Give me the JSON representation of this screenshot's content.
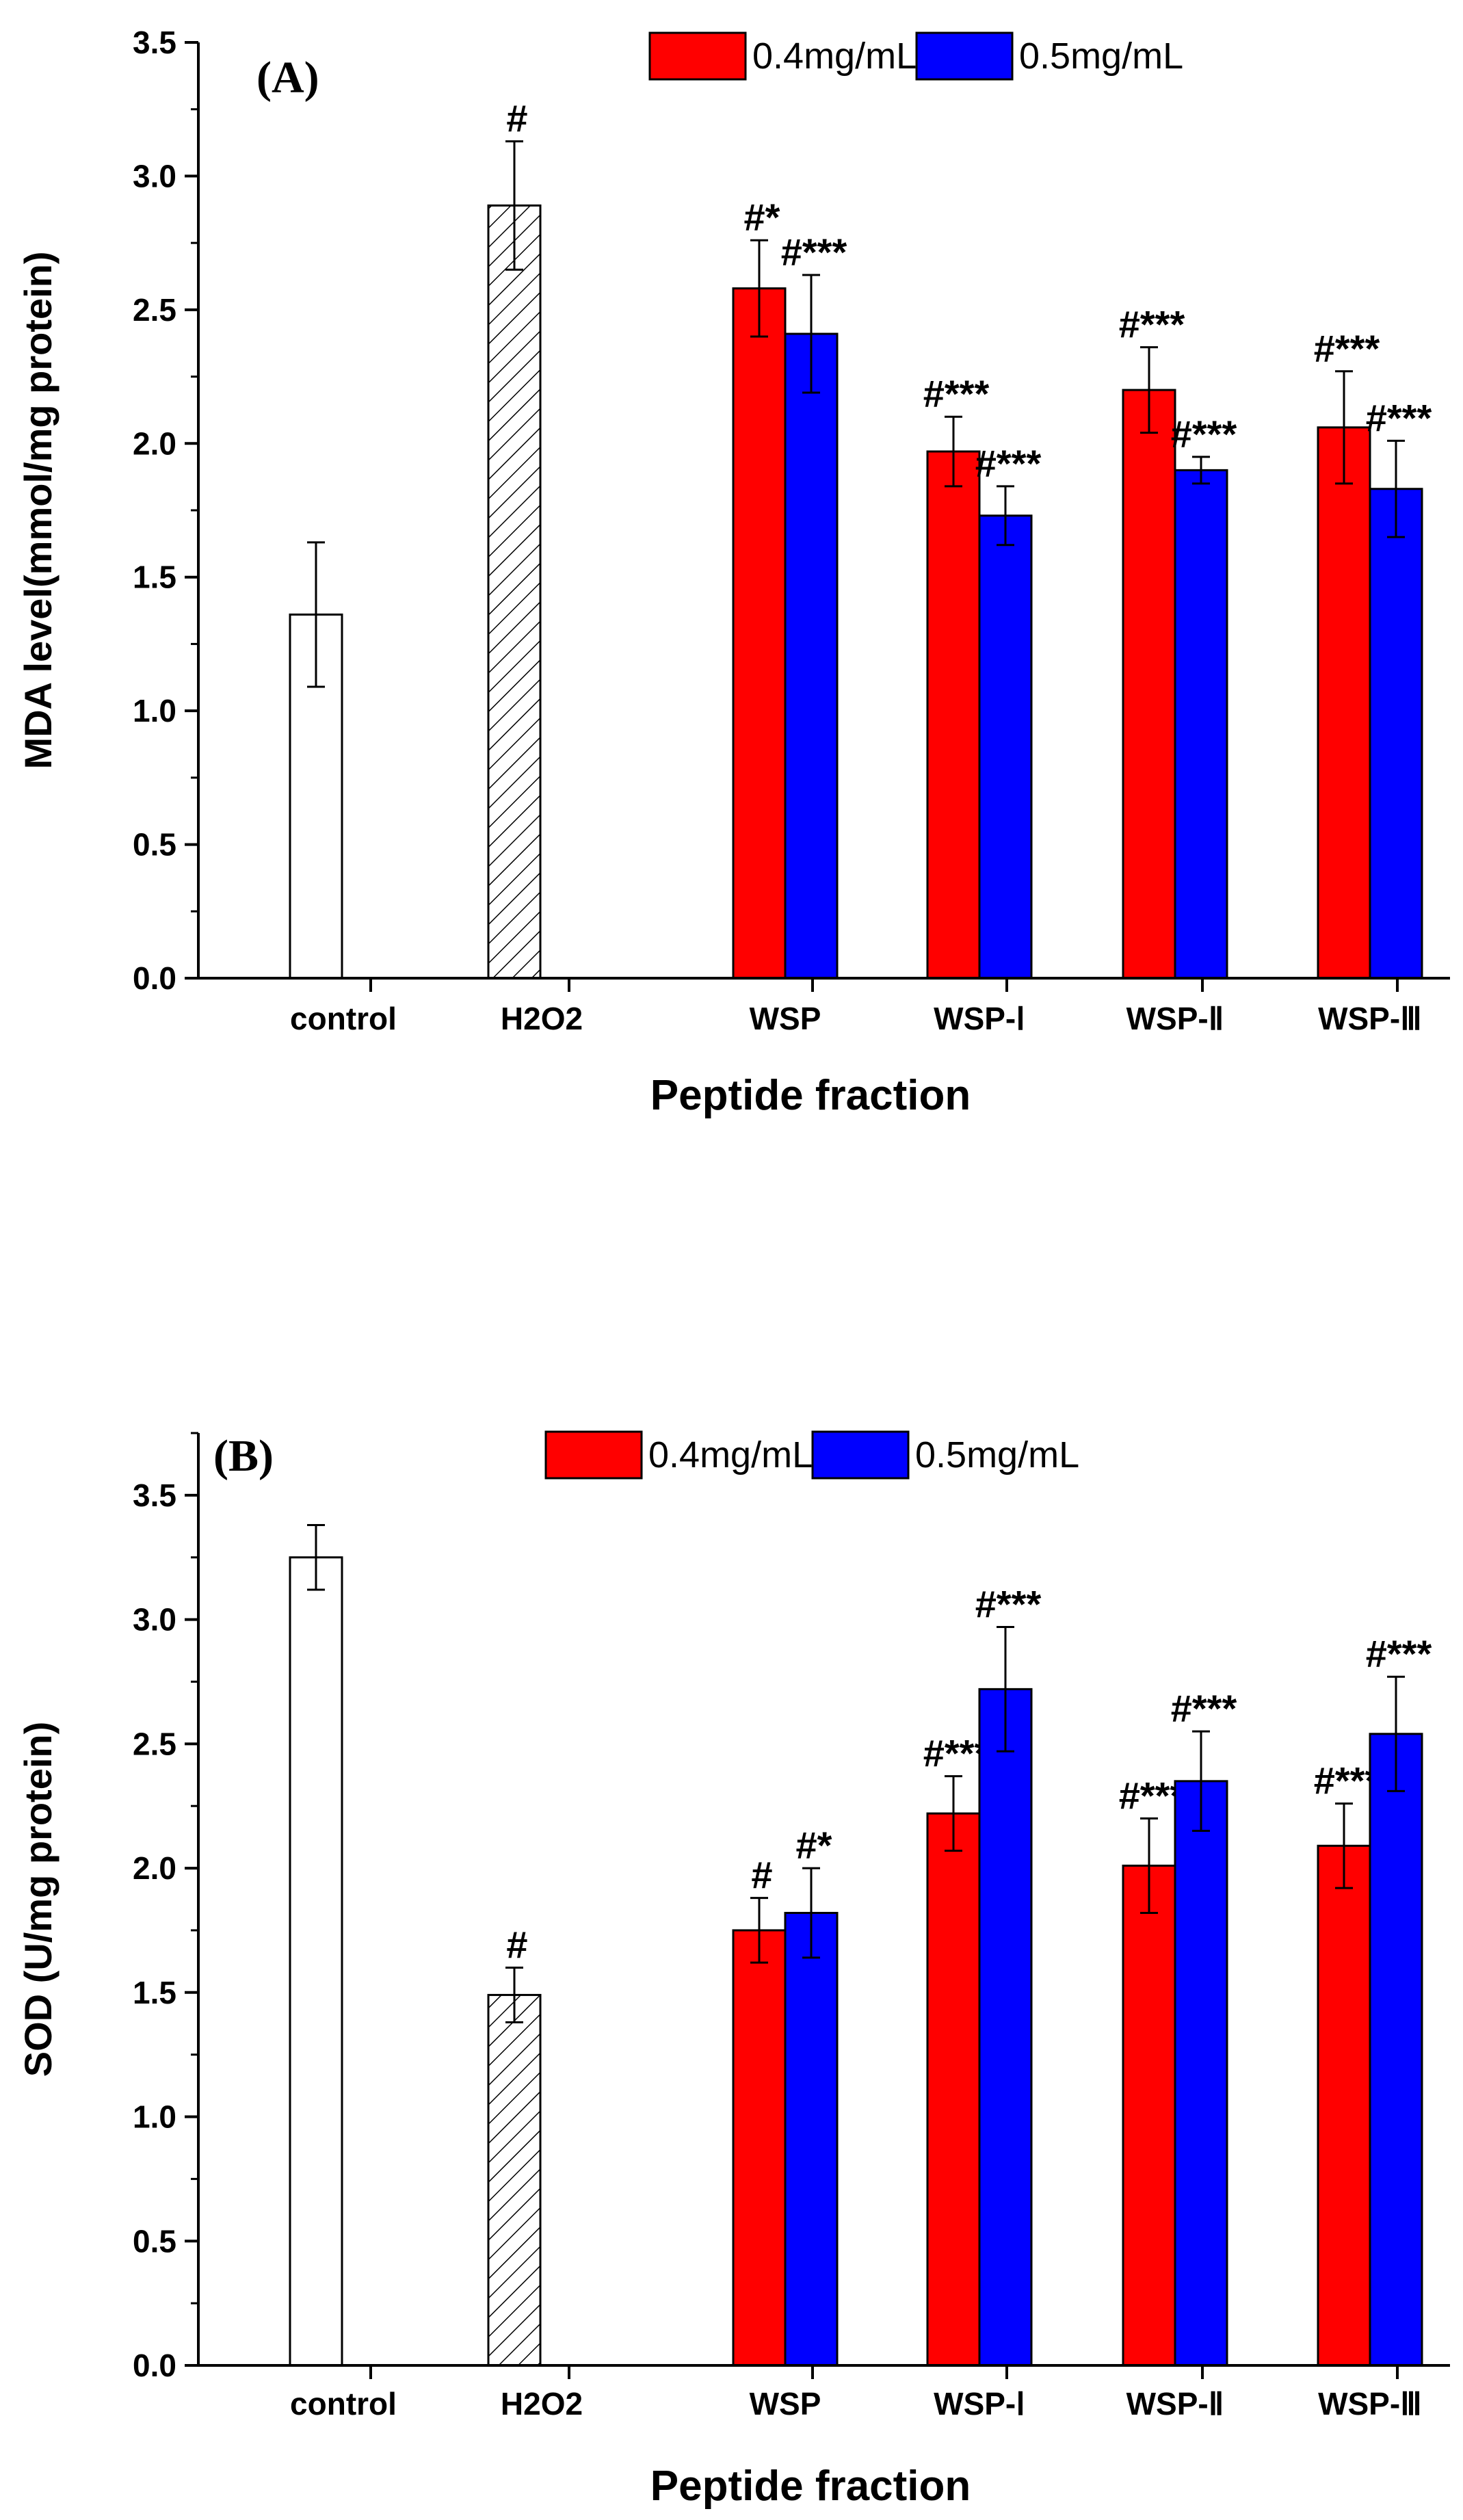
{
  "chart_data": [
    {
      "type": "bar",
      "panel_label": "(A)",
      "xlabel": "Peptide fraction",
      "ylabel": "MDA level(mmol/mg protein)",
      "ylim": [
        0,
        3.5
      ],
      "yticks": [
        "0.0",
        "0.5",
        "1.0",
        "1.5",
        "2.0",
        "2.5",
        "3.0",
        "3.5"
      ],
      "categories": [
        "control",
        "H2O2",
        "WSP",
        "WSP-Ⅰ",
        "WSP-Ⅱ",
        "WSP-Ⅲ"
      ],
      "legend_position": "top-right",
      "bars": [
        {
          "category": "control",
          "style": "open",
          "value": 1.36,
          "error": 0.27,
          "label": ""
        },
        {
          "category": "H2O2",
          "style": "hatched",
          "value": 2.89,
          "error": 0.24,
          "label": "#"
        },
        {
          "category": "WSP",
          "series": "0.4mg/mL",
          "value": 2.58,
          "error": 0.18,
          "label": "#*"
        },
        {
          "category": "WSP",
          "series": "0.5mg/mL",
          "value": 2.41,
          "error": 0.22,
          "label": "#***"
        },
        {
          "category": "WSP-Ⅰ",
          "series": "0.4mg/mL",
          "value": 1.97,
          "error": 0.13,
          "label": "#***"
        },
        {
          "category": "WSP-Ⅰ",
          "series": "0.5mg/mL",
          "value": 1.73,
          "error": 0.11,
          "label": "#***"
        },
        {
          "category": "WSP-Ⅱ",
          "series": "0.4mg/mL",
          "value": 2.2,
          "error": 0.16,
          "label": "#***"
        },
        {
          "category": "WSP-Ⅱ",
          "series": "0.5mg/mL",
          "value": 1.9,
          "error": 0.05,
          "label": "#***"
        },
        {
          "category": "WSP-Ⅲ",
          "series": "0.4mg/mL",
          "value": 2.06,
          "error": 0.21,
          "label": "#***"
        },
        {
          "category": "WSP-Ⅲ",
          "series": "0.5mg/mL",
          "value": 1.83,
          "error": 0.18,
          "label": "#***"
        }
      ],
      "series": [
        {
          "name": "0.4mg/mL",
          "color": "#ff0000"
        },
        {
          "name": "0.5mg/mL",
          "color": "#0000ff"
        }
      ]
    },
    {
      "type": "bar",
      "panel_label": "(B)",
      "xlabel": "Peptide fraction",
      "ylabel": "SOD (U/mg protein)",
      "ylim": [
        0,
        3.75
      ],
      "yticks": [
        "0.0",
        "0.5",
        "1.0",
        "1.5",
        "2.0",
        "2.5",
        "3.0",
        "3.5"
      ],
      "categories": [
        "control",
        "H2O2",
        "WSP",
        "WSP-Ⅰ",
        "WSP-Ⅱ",
        "WSP-Ⅲ"
      ],
      "legend_position": "top-right",
      "bars": [
        {
          "category": "control",
          "style": "open",
          "value": 3.25,
          "error": 0.13,
          "label": ""
        },
        {
          "category": "H2O2",
          "style": "hatched",
          "value": 1.49,
          "error": 0.11,
          "label": "#"
        },
        {
          "category": "WSP",
          "series": "0.4mg/mL",
          "value": 1.75,
          "error": 0.13,
          "label": "#"
        },
        {
          "category": "WSP",
          "series": "0.5mg/mL",
          "value": 1.82,
          "error": 0.18,
          "label": "#*"
        },
        {
          "category": "WSP-Ⅰ",
          "series": "0.4mg/mL",
          "value": 2.22,
          "error": 0.15,
          "label": "#***"
        },
        {
          "category": "WSP-Ⅰ",
          "series": "0.5mg/mL",
          "value": 2.72,
          "error": 0.25,
          "label": "#***"
        },
        {
          "category": "WSP-Ⅱ",
          "series": "0.4mg/mL",
          "value": 2.01,
          "error": 0.19,
          "label": "#***"
        },
        {
          "category": "WSP-Ⅱ",
          "series": "0.5mg/mL",
          "value": 2.35,
          "error": 0.2,
          "label": "#***"
        },
        {
          "category": "WSP-Ⅲ",
          "series": "0.4mg/mL",
          "value": 2.09,
          "error": 0.17,
          "label": "#***"
        },
        {
          "category": "WSP-Ⅲ",
          "series": "0.5mg/mL",
          "value": 2.54,
          "error": 0.23,
          "label": "#***"
        }
      ],
      "series": [
        {
          "name": "0.4mg/mL",
          "color": "#ff0000"
        },
        {
          "name": "0.5mg/mL",
          "color": "#0000ff"
        }
      ]
    }
  ]
}
